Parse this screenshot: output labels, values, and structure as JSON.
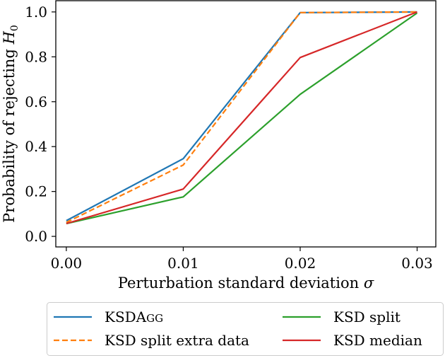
{
  "chart_data": {
    "type": "line",
    "title": "",
    "xlabel": "Perturbation standard deviation σ",
    "ylabel": "Probability of rejecting H₀",
    "ylabel_parts": {
      "text": "Probability of rejecting ",
      "math": "H",
      "sub": "0"
    },
    "xlabel_parts": {
      "text": "Perturbation standard deviation ",
      "math": "σ"
    },
    "x": [
      0.0,
      0.01,
      0.02,
      0.03
    ],
    "xticks": [
      "0.00",
      "0.01",
      "0.02",
      "0.03"
    ],
    "yticks": [
      "0.0",
      "0.2",
      "0.4",
      "0.6",
      "0.8",
      "1.0"
    ],
    "xlim": [
      -0.0009,
      0.0316
    ],
    "ylim": [
      -0.047,
      1.05
    ],
    "grid": false,
    "legend_position": "bottom-outside",
    "series": [
      {
        "name": "KSDAGG",
        "label_main": "KSDA",
        "label_smallcaps": "GG",
        "color": "#1f77b4",
        "dash": "solid",
        "values": [
          0.07,
          0.346,
          0.997,
          1.0
        ]
      },
      {
        "name": "KSD split extra data",
        "color": "#ff7f0e",
        "dash": "dashed",
        "values": [
          0.062,
          0.318,
          0.997,
          1.0
        ]
      },
      {
        "name": "KSD split",
        "color": "#2ca02c",
        "dash": "solid",
        "values": [
          0.057,
          0.176,
          0.633,
          0.995
        ]
      },
      {
        "name": "KSD median",
        "color": "#d62728",
        "dash": "solid",
        "values": [
          0.057,
          0.211,
          0.797,
          1.0
        ]
      }
    ]
  }
}
